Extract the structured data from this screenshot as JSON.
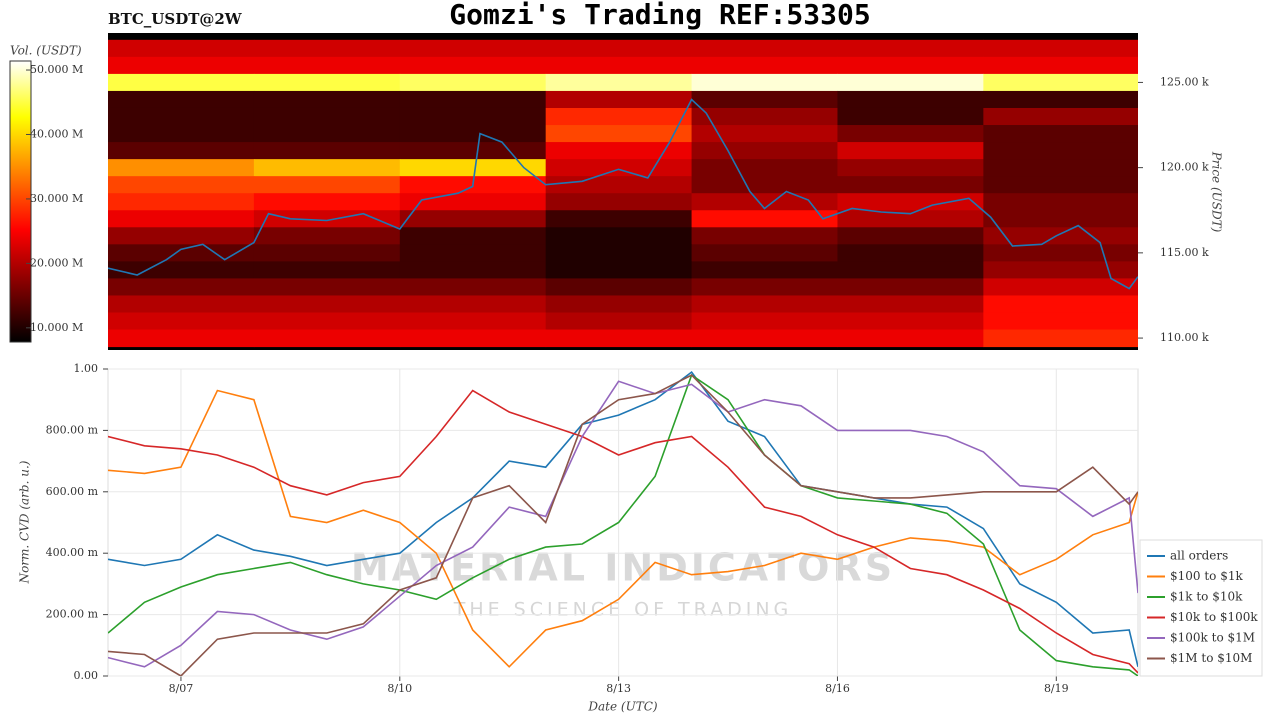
{
  "watermark": {
    "title": "MATERIAL INDICATORS",
    "subtitle": "THE SCIENCE OF TRADING"
  },
  "chart_data": [
    {
      "type": "heatmap",
      "title": "Gomzi's Trading REF:53305",
      "label": "BTC_USDT@2W",
      "ylabel": "Price (USDT)",
      "xlim": [
        6.0,
        20.12
      ],
      "ylim": [
        109.3,
        127.9
      ],
      "yticks": [
        {
          "value": 110,
          "label": "110.00 k"
        },
        {
          "value": 115,
          "label": "115.00 k"
        },
        {
          "value": 120,
          "label": "120.00 k"
        },
        {
          "value": 125,
          "label": "125.00 k"
        }
      ],
      "colorbar": {
        "title": "Vol. (USDT)",
        "lim": [
          7.8,
          51.4
        ],
        "ticks": [
          {
            "value": 10,
            "label": "10.000 M"
          },
          {
            "value": 20,
            "label": "20.000 M"
          },
          {
            "value": 30,
            "label": "30.000 M"
          },
          {
            "value": 40,
            "label": "40.000 M"
          },
          {
            "value": 50,
            "label": "50.000 M"
          }
        ]
      },
      "x_edges": [
        6.0,
        8.0,
        10.0,
        12.0,
        14.0,
        16.0,
        18.0,
        20.12
      ],
      "y": [
        127,
        126,
        125,
        124,
        123,
        122,
        121,
        120,
        119,
        118,
        117,
        116,
        115,
        114,
        113,
        112,
        111,
        110
      ],
      "z": [
        [
          22,
          22,
          22,
          22,
          22,
          22,
          22
        ],
        [
          24,
          24,
          24,
          24,
          24,
          24,
          24
        ],
        [
          45,
          45,
          46,
          48,
          50,
          50,
          46
        ],
        [
          12,
          12,
          12,
          20,
          14,
          12,
          12
        ],
        [
          12,
          12,
          12,
          28,
          18,
          12,
          18
        ],
        [
          12,
          12,
          12,
          30,
          20,
          16,
          14
        ],
        [
          14,
          14,
          14,
          24,
          18,
          22,
          14
        ],
        [
          35,
          38,
          40,
          22,
          16,
          18,
          14
        ],
        [
          30,
          30,
          26,
          20,
          16,
          16,
          14
        ],
        [
          28,
          26,
          24,
          18,
          20,
          22,
          16
        ],
        [
          24,
          22,
          18,
          12,
          26,
          20,
          16
        ],
        [
          18,
          16,
          12,
          10,
          16,
          14,
          18
        ],
        [
          14,
          14,
          12,
          10,
          14,
          12,
          16
        ],
        [
          12,
          12,
          12,
          10,
          12,
          12,
          18
        ],
        [
          16,
          16,
          16,
          14,
          16,
          16,
          22
        ],
        [
          20,
          20,
          20,
          18,
          20,
          20,
          26
        ],
        [
          22,
          22,
          22,
          20,
          22,
          22,
          26
        ],
        [
          24,
          24,
          24,
          24,
          24,
          24,
          28
        ]
      ],
      "line": {
        "color": "#1f77b4",
        "x": [
          6.0,
          6.4,
          6.8,
          7.0,
          7.3,
          7.6,
          8.0,
          8.2,
          8.5,
          9.0,
          9.5,
          10.0,
          10.3,
          10.8,
          11.0,
          11.1,
          11.4,
          11.7,
          12.0,
          12.5,
          13.0,
          13.4,
          13.7,
          14.0,
          14.2,
          14.5,
          14.8,
          15.0,
          15.3,
          15.6,
          15.8,
          16.2,
          16.6,
          17.0,
          17.3,
          17.8,
          18.1,
          18.4,
          18.8,
          19.0,
          19.3,
          19.6,
          19.75,
          20.0,
          20.12
        ],
        "values": [
          114.1,
          113.7,
          114.6,
          115.2,
          115.5,
          114.6,
          115.6,
          117.3,
          117.0,
          116.9,
          117.3,
          116.4,
          118.1,
          118.5,
          118.9,
          122.0,
          121.5,
          120.0,
          119.0,
          119.2,
          119.9,
          119.4,
          121.5,
          124.0,
          123.2,
          121.0,
          118.6,
          117.6,
          118.6,
          118.1,
          117.0,
          117.6,
          117.4,
          117.3,
          117.8,
          118.2,
          117.1,
          115.4,
          115.5,
          116.0,
          116.6,
          115.6,
          113.5,
          112.9,
          113.6
        ]
      }
    },
    {
      "type": "line",
      "xlabel": "Date (UTC)",
      "ylabel": "Norm. CVD (arb. u.)",
      "grid": true,
      "xlim": [
        6.0,
        20.12
      ],
      "ylim": [
        0,
        1
      ],
      "xticks": [
        {
          "value": 7,
          "label": "8/07"
        },
        {
          "value": 10,
          "label": "8/10"
        },
        {
          "value": 13,
          "label": "8/13"
        },
        {
          "value": 16,
          "label": "8/16"
        },
        {
          "value": 19,
          "label": "8/19"
        }
      ],
      "yticks": [
        {
          "value": 0,
          "label": "0.00"
        },
        {
          "value": 0.2,
          "label": "200.00 m"
        },
        {
          "value": 0.4,
          "label": "400.00 m"
        },
        {
          "value": 0.6,
          "label": "600.00 m"
        },
        {
          "value": 0.8,
          "label": "800.00 m"
        },
        {
          "value": 1,
          "label": "1.00"
        }
      ],
      "x": [
        6.0,
        6.5,
        7.0,
        7.5,
        8.0,
        8.5,
        9.0,
        9.5,
        10.0,
        10.5,
        11.0,
        11.5,
        12.0,
        12.5,
        13.0,
        13.5,
        14.0,
        14.5,
        15.0,
        15.5,
        16.0,
        16.5,
        17.0,
        17.5,
        18.0,
        18.5,
        19.0,
        19.5,
        20.0,
        20.12
      ],
      "series": [
        {
          "name": "all orders",
          "color": "#1f77b4",
          "values": [
            0.38,
            0.36,
            0.38,
            0.46,
            0.41,
            0.39,
            0.36,
            0.38,
            0.4,
            0.5,
            0.58,
            0.7,
            0.68,
            0.82,
            0.85,
            0.9,
            0.99,
            0.83,
            0.78,
            0.62,
            0.6,
            0.58,
            0.56,
            0.55,
            0.48,
            0.3,
            0.24,
            0.14,
            0.15,
            0.03
          ]
        },
        {
          "name": "$100 to $1k",
          "color": "#ff7f0e",
          "values": [
            0.67,
            0.66,
            0.68,
            0.93,
            0.9,
            0.52,
            0.5,
            0.54,
            0.5,
            0.4,
            0.15,
            0.03,
            0.15,
            0.18,
            0.25,
            0.37,
            0.33,
            0.34,
            0.36,
            0.4,
            0.38,
            0.42,
            0.45,
            0.44,
            0.42,
            0.33,
            0.38,
            0.46,
            0.5,
            0.6
          ]
        },
        {
          "name": "$1k to $10k",
          "color": "#2ca02c",
          "values": [
            0.14,
            0.24,
            0.29,
            0.33,
            0.35,
            0.37,
            0.33,
            0.3,
            0.28,
            0.25,
            0.32,
            0.38,
            0.42,
            0.43,
            0.5,
            0.65,
            0.98,
            0.9,
            0.72,
            0.62,
            0.58,
            0.57,
            0.56,
            0.53,
            0.43,
            0.15,
            0.05,
            0.03,
            0.02,
            0.0
          ]
        },
        {
          "name": "$10k to $100k",
          "color": "#d62728",
          "values": [
            0.78,
            0.75,
            0.74,
            0.72,
            0.68,
            0.62,
            0.59,
            0.63,
            0.65,
            0.78,
            0.93,
            0.86,
            0.82,
            0.78,
            0.72,
            0.76,
            0.78,
            0.68,
            0.55,
            0.52,
            0.46,
            0.42,
            0.35,
            0.33,
            0.28,
            0.22,
            0.14,
            0.07,
            0.04,
            0.01
          ]
        },
        {
          "name": "$100k to $1M",
          "color": "#9467bd",
          "values": [
            0.06,
            0.03,
            0.1,
            0.21,
            0.2,
            0.15,
            0.12,
            0.16,
            0.26,
            0.36,
            0.42,
            0.55,
            0.52,
            0.78,
            0.96,
            0.92,
            0.95,
            0.86,
            0.9,
            0.88,
            0.8,
            0.8,
            0.8,
            0.78,
            0.73,
            0.62,
            0.61,
            0.52,
            0.58,
            0.27
          ]
        },
        {
          "name": "$1M to $10M",
          "color": "#8c564b",
          "values": [
            0.08,
            0.07,
            0.0,
            0.12,
            0.14,
            0.14,
            0.14,
            0.17,
            0.28,
            0.32,
            0.58,
            0.62,
            0.5,
            0.82,
            0.9,
            0.92,
            0.98,
            0.86,
            0.72,
            0.62,
            0.6,
            0.58,
            0.58,
            0.59,
            0.6,
            0.6,
            0.6,
            0.68,
            0.56,
            0.6
          ]
        }
      ]
    }
  ]
}
